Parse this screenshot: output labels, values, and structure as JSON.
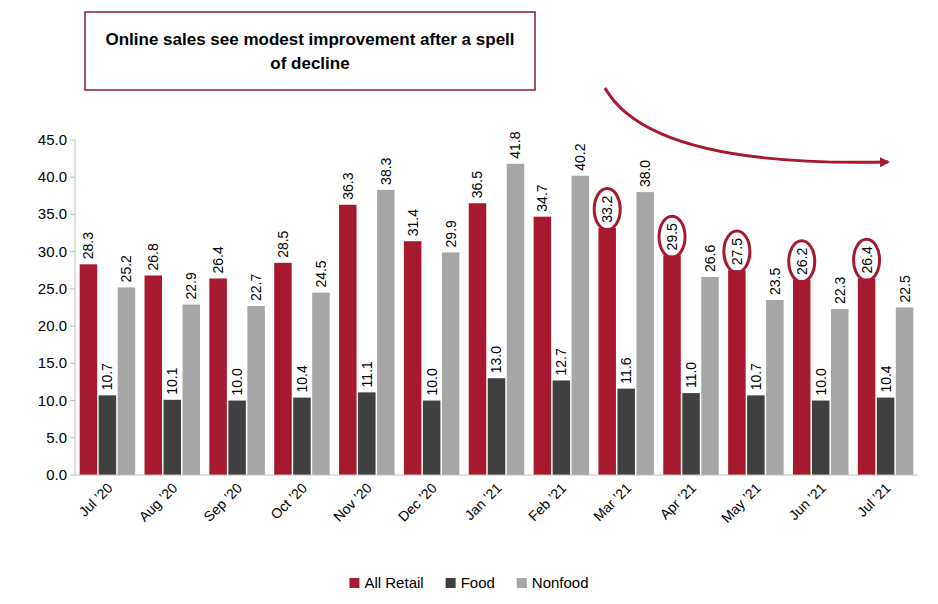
{
  "chart_data": {
    "type": "bar",
    "title": "Online sales see modest improvement after a spell of decline",
    "categories": [
      "Jul ’20",
      "Aug ’20",
      "Sep ’20",
      "Oct ’20",
      "Nov ’20",
      "Dec ’20",
      "Jan ’21",
      "Feb ’21",
      "Mar ’21",
      "Apr ’21",
      "May ’21",
      "Jun ’21",
      "Jul ’21"
    ],
    "series": [
      {
        "name": "All Retail",
        "color": "#a6192e",
        "values": [
          28.3,
          26.8,
          26.4,
          28.5,
          36.3,
          31.4,
          36.5,
          34.7,
          33.2,
          29.5,
          27.5,
          26.2,
          26.4
        ],
        "value_labels": [
          "28.3",
          "26.8",
          "26.4",
          "28.5",
          "36.3",
          "31.4",
          "36.5",
          "34.7",
          "33.2",
          "29.5",
          "27.5",
          "26.2",
          "26.4"
        ]
      },
      {
        "name": "Food",
        "color": "#404040",
        "values": [
          10.7,
          10.1,
          10.0,
          10.4,
          11.1,
          10.0,
          13.0,
          12.7,
          11.6,
          11.0,
          10.7,
          10.0,
          10.4
        ],
        "value_labels": [
          "10.7",
          "10.1",
          "10.0",
          "10.4",
          "11.1",
          "10.0",
          "13.0",
          "12.7",
          "11.6",
          "11.0",
          "10.7",
          "10.0",
          "10.4"
        ]
      },
      {
        "name": "Nonfood",
        "color": "#a6a6a6",
        "values": [
          25.2,
          22.9,
          22.7,
          24.5,
          38.3,
          29.9,
          41.8,
          40.2,
          38.0,
          26.6,
          23.5,
          22.3,
          22.5
        ],
        "value_labels": [
          "25.2",
          "22.9",
          "22.7",
          "24.5",
          "38.3",
          "29.9",
          "41.8",
          "40.2",
          "38.0",
          "26.6",
          "23.5",
          "22.3",
          "22.5"
        ]
      }
    ],
    "ylim": [
      0,
      45
    ],
    "yticks": [
      {
        "value": 0,
        "label": "0.0"
      },
      {
        "value": 5,
        "label": "5.0"
      },
      {
        "value": 10,
        "label": "10.0"
      },
      {
        "value": 15,
        "label": "15.0"
      },
      {
        "value": 20,
        "label": "20.0"
      },
      {
        "value": 25,
        "label": "25.0"
      },
      {
        "value": 30,
        "label": "30.0"
      },
      {
        "value": 35,
        "label": "35.0"
      },
      {
        "value": 40,
        "label": "40.0"
      },
      {
        "value": 45,
        "label": "45.0"
      }
    ],
    "grid": false,
    "legend": "bottom",
    "data_labels": true
  }
}
